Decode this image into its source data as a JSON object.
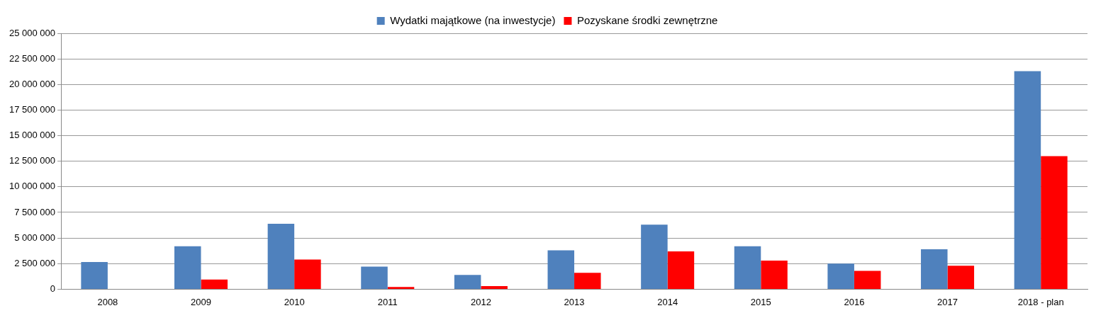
{
  "chart_data": {
    "type": "bar",
    "categories": [
      "2008",
      "2009",
      "2010",
      "2011",
      "2012",
      "2013",
      "2014",
      "2015",
      "2016",
      "2017",
      "2018 - plan"
    ],
    "series": [
      {
        "name": "Wydatki majątkowe (na inwestycje)",
        "color": "#4f81bd",
        "values": [
          2650000,
          4200000,
          6400000,
          2200000,
          1400000,
          3800000,
          6300000,
          4200000,
          2500000,
          3900000,
          21300000
        ]
      },
      {
        "name": "Pozyskane środki zewnętrzne",
        "color": "#ff0000",
        "values": [
          0,
          950000,
          2900000,
          220000,
          300000,
          1600000,
          3700000,
          2800000,
          1800000,
          2300000,
          13000000
        ]
      }
    ],
    "ylim": [
      0,
      25000000
    ],
    "yticks": [
      {
        "value": 0,
        "label": "0"
      },
      {
        "value": 2500000,
        "label": "2 500 000"
      },
      {
        "value": 5000000,
        "label": "5 000 000"
      },
      {
        "value": 7500000,
        "label": "7 500 000"
      },
      {
        "value": 10000000,
        "label": "10 000 000"
      },
      {
        "value": 12500000,
        "label": "12 500 000"
      },
      {
        "value": 15000000,
        "label": "15 000 000"
      },
      {
        "value": 17500000,
        "label": "17 500 000"
      },
      {
        "value": 20000000,
        "label": "20 000 000"
      },
      {
        "value": 22500000,
        "label": "22 500 000"
      },
      {
        "value": 25000000,
        "label": "25 000 000"
      }
    ],
    "grid": "y",
    "legend": "top"
  }
}
